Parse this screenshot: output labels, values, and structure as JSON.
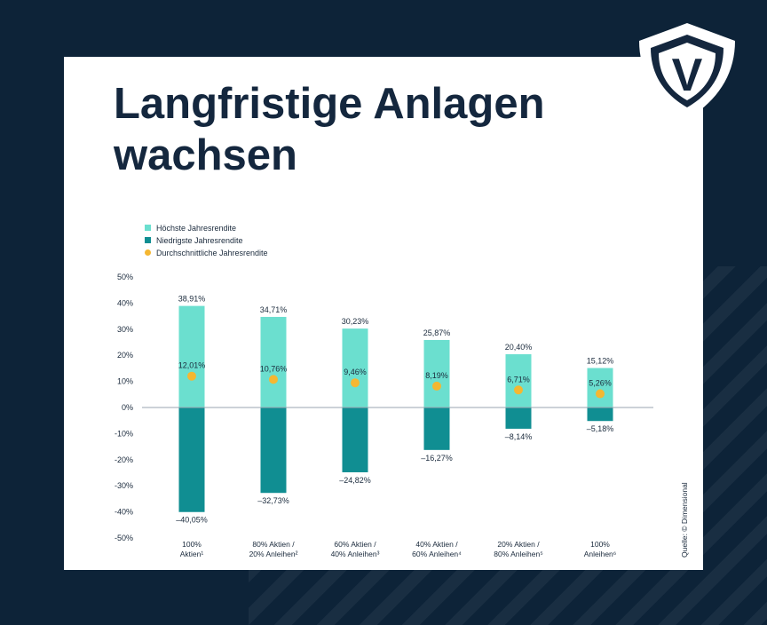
{
  "title_line1": "Langfristige Anlagen",
  "title_line2": "wachsen",
  "logo_letter": "V",
  "source": "Quelle: © Dimensional",
  "colors": {
    "background": "#0d2338",
    "card": "#ffffff",
    "title": "#14273e",
    "high": "#6bdfcf",
    "low": "#108e92",
    "avg": "#f5b731"
  },
  "chart_data": {
    "type": "bar",
    "ylim": [
      -50,
      50
    ],
    "yticks": [
      50,
      40,
      30,
      20,
      10,
      0,
      -10,
      -20,
      -30,
      -40,
      -50
    ],
    "ytick_labels": [
      "50%",
      "40%",
      "30%",
      "20%",
      "10%",
      "0%",
      "-10%",
      "-20%",
      "-30%",
      "-40%",
      "-50%"
    ],
    "legend_position": "top-left",
    "categories": [
      [
        "100%",
        "Aktien¹"
      ],
      [
        "80% Aktien /",
        "20% Anleihen²"
      ],
      [
        "60% Aktien /",
        "40% Anleihen³"
      ],
      [
        "40% Aktien /",
        "60% Anleihen⁴"
      ],
      [
        "20% Aktien /",
        "80% Anleihen⁵"
      ],
      [
        "100%",
        "Anleihen⁶"
      ]
    ],
    "series": [
      {
        "name": "Höchste Jahresrendite",
        "values": [
          38.91,
          34.71,
          30.23,
          25.87,
          20.4,
          15.12
        ],
        "labels": [
          "38,91%",
          "34,71%",
          "30,23%",
          "25,87%",
          "20,40%",
          "15,12%"
        ]
      },
      {
        "name": "Niedrigste Jahresrendite",
        "values": [
          -40.05,
          -32.73,
          -24.82,
          -16.27,
          -8.14,
          -5.18
        ],
        "labels": [
          "–40,05%",
          "–32,73%",
          "–24,82%",
          "–16,27%",
          "–8,14%",
          "–5,18%"
        ]
      },
      {
        "name": "Durchschnittliche Jahresrendite",
        "values": [
          12.01,
          10.76,
          9.46,
          8.19,
          6.71,
          5.26
        ],
        "labels": [
          "12,01%",
          "10,76%",
          "9,46%",
          "8,19%",
          "6,71%",
          "5,26%"
        ]
      }
    ]
  }
}
